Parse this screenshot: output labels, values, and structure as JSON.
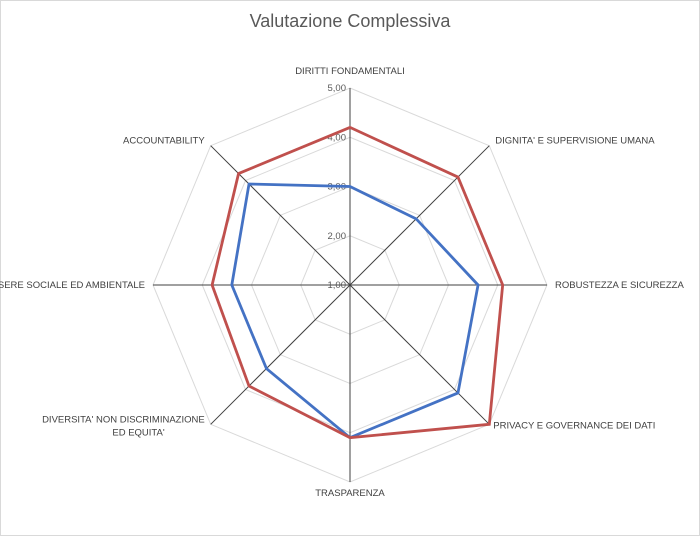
{
  "chart_data": {
    "type": "radar",
    "title": "Valutazione Complessiva",
    "categories": [
      [
        "DIRITTI FONDAMENTALI"
      ],
      [
        "DIGNITA' E SUPERVISIONE UMANA"
      ],
      [
        "ROBUSTEZZA E SICUREZZA"
      ],
      [
        "PRIVACY E GOVERNANCE DEI DATI"
      ],
      [
        "TRASPARENZA"
      ],
      [
        "DIVERSITA' NON DISCRIMINAZIONE",
        "ED EQUITA'"
      ],
      [
        "BENESSERE SOCIALE ED AMBIENTALE"
      ],
      [
        "ACCOUNTABILITY"
      ]
    ],
    "ticks": [
      "1,00",
      "2,00",
      "3,00",
      "4,00",
      "5,00"
    ],
    "range": [
      1,
      5
    ],
    "grid": true,
    "legend": "none",
    "series": [
      {
        "color": "#4472C4",
        "values": [
          3.0,
          2.9,
          3.6,
          4.1,
          4.1,
          3.4,
          3.4,
          3.9
        ]
      },
      {
        "color": "#C0504D",
        "values": [
          4.2,
          4.1,
          4.1,
          5.0,
          4.1,
          3.9,
          3.8,
          4.2
        ]
      }
    ]
  }
}
